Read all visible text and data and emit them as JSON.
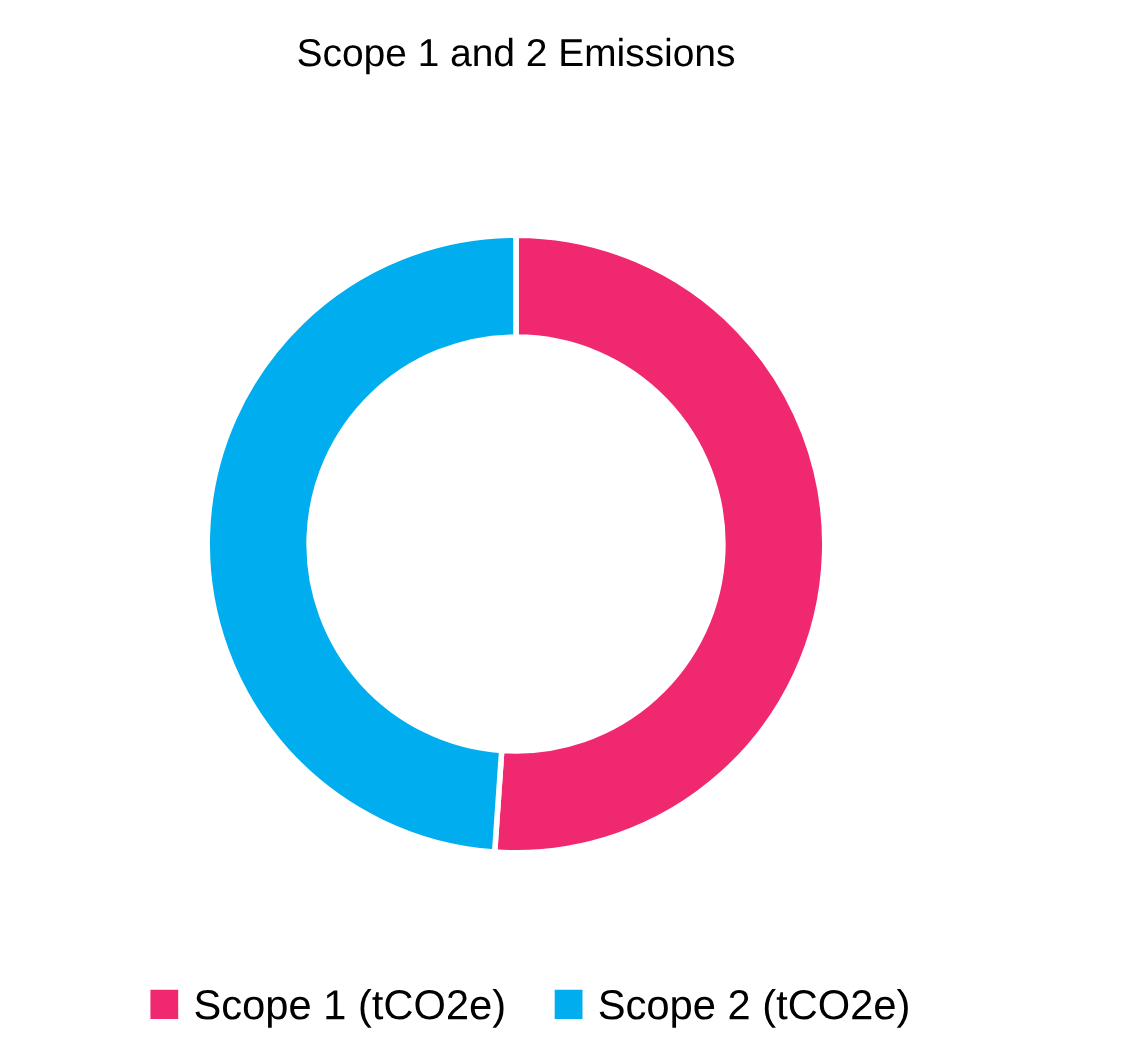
{
  "chart_data": {
    "type": "donut",
    "title": "Scope 1 and 2 Emissions",
    "categories": [
      "Scope 1 (tCO2e)",
      "Scope 2 (tCO2e)"
    ],
    "values": [
      51.1,
      48.9
    ],
    "colors": [
      "#f0286f",
      "#00adef"
    ],
    "legend": "bottom"
  }
}
